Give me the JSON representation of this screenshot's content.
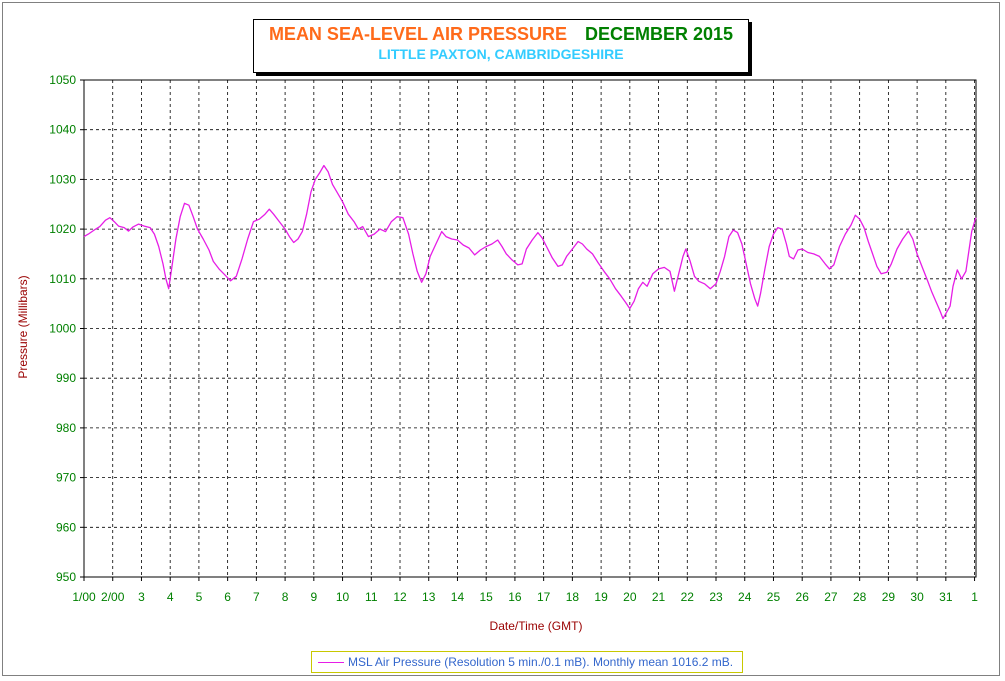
{
  "chart_data": {
    "type": "line",
    "title": "MEAN SEA-LEVEL AIR PRESSURE",
    "title_period": "DECEMBER 2015",
    "subtitle": "LITTLE PAXTON, CAMBRIDGESHIRE",
    "xlabel": "Date/Time (GMT)",
    "ylabel": "Pressure (Millibars)",
    "ylim": [
      950,
      1050
    ],
    "yticks": [
      "1050",
      "1040",
      "1030",
      "1020",
      "1010",
      "1000",
      "990",
      "980",
      "970",
      "960",
      "950"
    ],
    "xlim": [
      1,
      32.05
    ],
    "xticks": [
      "1/00",
      "2/00",
      "3",
      "4",
      "5",
      "6",
      "7",
      "8",
      "9",
      "10",
      "11",
      "12",
      "13",
      "14",
      "15",
      "16",
      "17",
      "18",
      "19",
      "20",
      "21",
      "22",
      "23",
      "24",
      "25",
      "26",
      "27",
      "28",
      "29",
      "30",
      "31",
      "1"
    ],
    "grid": true,
    "colors": {
      "series": "#e61ee6",
      "tick": "#008000",
      "axis_label": "#990000",
      "title": "#ff6a1a",
      "title_period": "#008000",
      "subtitle": "#33ccff",
      "legend_text": "#3366cc"
    },
    "legend_text": "MSL Air Pressure (Resolution 5 min./0.1 mB). Monthly mean 1016.2 mB.",
    "series": [
      {
        "name": "MSL Air Pressure",
        "points": [
          [
            1.0,
            1018.5
          ],
          [
            1.15,
            1019.0
          ],
          [
            1.35,
            1019.8
          ],
          [
            1.55,
            1020.5
          ],
          [
            1.75,
            1021.8
          ],
          [
            1.9,
            1022.3
          ],
          [
            2.05,
            1021.5
          ],
          [
            2.2,
            1020.6
          ],
          [
            2.4,
            1020.3
          ],
          [
            2.55,
            1019.6
          ],
          [
            2.7,
            1020.4
          ],
          [
            2.9,
            1021.0
          ],
          [
            3.1,
            1020.6
          ],
          [
            3.3,
            1020.3
          ],
          [
            3.45,
            1019.0
          ],
          [
            3.6,
            1016.5
          ],
          [
            3.75,
            1013.0
          ],
          [
            3.85,
            1010.0
          ],
          [
            3.95,
            1008.0
          ],
          [
            4.05,
            1012.0
          ],
          [
            4.2,
            1018.0
          ],
          [
            4.35,
            1022.5
          ],
          [
            4.5,
            1025.2
          ],
          [
            4.65,
            1024.8
          ],
          [
            4.8,
            1022.5
          ],
          [
            4.95,
            1020.0
          ],
          [
            5.15,
            1018.0
          ],
          [
            5.35,
            1015.8
          ],
          [
            5.5,
            1013.5
          ],
          [
            5.7,
            1012.0
          ],
          [
            5.9,
            1010.8
          ],
          [
            6.1,
            1009.6
          ],
          [
            6.3,
            1010.5
          ],
          [
            6.5,
            1014.0
          ],
          [
            6.7,
            1018.0
          ],
          [
            6.9,
            1021.5
          ],
          [
            7.1,
            1022.0
          ],
          [
            7.3,
            1023.0
          ],
          [
            7.45,
            1024.0
          ],
          [
            7.6,
            1023.0
          ],
          [
            7.8,
            1021.5
          ],
          [
            8.0,
            1020.0
          ],
          [
            8.15,
            1018.5
          ],
          [
            8.3,
            1017.3
          ],
          [
            8.45,
            1018.0
          ],
          [
            8.6,
            1019.5
          ],
          [
            8.75,
            1023.0
          ],
          [
            8.9,
            1027.5
          ],
          [
            9.05,
            1030.0
          ],
          [
            9.2,
            1031.3
          ],
          [
            9.35,
            1032.8
          ],
          [
            9.5,
            1031.5
          ],
          [
            9.65,
            1029.0
          ],
          [
            9.8,
            1027.5
          ],
          [
            10.0,
            1025.5
          ],
          [
            10.2,
            1023.0
          ],
          [
            10.4,
            1021.5
          ],
          [
            10.55,
            1020.0
          ],
          [
            10.7,
            1020.5
          ],
          [
            10.9,
            1018.5
          ],
          [
            11.1,
            1019.0
          ],
          [
            11.3,
            1020.0
          ],
          [
            11.5,
            1019.5
          ],
          [
            11.7,
            1021.5
          ],
          [
            11.9,
            1022.5
          ],
          [
            12.1,
            1022.3
          ],
          [
            12.3,
            1019.0
          ],
          [
            12.45,
            1015.0
          ],
          [
            12.6,
            1011.5
          ],
          [
            12.75,
            1009.3
          ],
          [
            12.9,
            1011.0
          ],
          [
            13.05,
            1014.5
          ],
          [
            13.25,
            1017.0
          ],
          [
            13.45,
            1019.5
          ],
          [
            13.6,
            1018.5
          ],
          [
            13.8,
            1018.0
          ],
          [
            14.0,
            1017.8
          ],
          [
            14.2,
            1016.8
          ],
          [
            14.4,
            1016.2
          ],
          [
            14.6,
            1014.8
          ],
          [
            14.8,
            1015.8
          ],
          [
            15.0,
            1016.5
          ],
          [
            15.2,
            1017.0
          ],
          [
            15.4,
            1017.8
          ],
          [
            15.55,
            1016.5
          ],
          [
            15.7,
            1015.0
          ],
          [
            15.9,
            1013.8
          ],
          [
            16.1,
            1012.8
          ],
          [
            16.25,
            1013.0
          ],
          [
            16.4,
            1016.0
          ],
          [
            16.6,
            1017.8
          ],
          [
            16.8,
            1019.3
          ],
          [
            16.95,
            1018.2
          ],
          [
            17.1,
            1016.5
          ],
          [
            17.3,
            1014.2
          ],
          [
            17.5,
            1012.5
          ],
          [
            17.65,
            1012.8
          ],
          [
            17.8,
            1014.5
          ],
          [
            18.0,
            1016.0
          ],
          [
            18.2,
            1017.5
          ],
          [
            18.35,
            1017.0
          ],
          [
            18.5,
            1016.0
          ],
          [
            18.7,
            1015.0
          ],
          [
            18.9,
            1013.2
          ],
          [
            19.1,
            1011.5
          ],
          [
            19.3,
            1010.0
          ],
          [
            19.5,
            1008.0
          ],
          [
            19.7,
            1006.5
          ],
          [
            19.85,
            1005.3
          ],
          [
            20.0,
            1004.0
          ],
          [
            20.15,
            1005.5
          ],
          [
            20.3,
            1008.0
          ],
          [
            20.45,
            1009.3
          ],
          [
            20.6,
            1008.5
          ],
          [
            20.8,
            1011.0
          ],
          [
            21.0,
            1012.0
          ],
          [
            21.2,
            1012.3
          ],
          [
            21.4,
            1011.5
          ],
          [
            21.55,
            1007.5
          ],
          [
            21.7,
            1011.0
          ],
          [
            21.85,
            1014.5
          ],
          [
            21.95,
            1016.0
          ],
          [
            22.1,
            1013.5
          ],
          [
            22.25,
            1010.5
          ],
          [
            22.4,
            1009.5
          ],
          [
            22.6,
            1009.0
          ],
          [
            22.8,
            1008.0
          ],
          [
            23.0,
            1009.0
          ],
          [
            23.15,
            1011.5
          ],
          [
            23.3,
            1014.5
          ],
          [
            23.45,
            1018.5
          ],
          [
            23.6,
            1019.8
          ],
          [
            23.75,
            1019.3
          ],
          [
            23.9,
            1017.0
          ],
          [
            24.05,
            1013.0
          ],
          [
            24.2,
            1009.0
          ],
          [
            24.35,
            1006.0
          ],
          [
            24.45,
            1004.5
          ],
          [
            24.55,
            1007.0
          ],
          [
            24.7,
            1012.0
          ],
          [
            24.85,
            1016.5
          ],
          [
            25.0,
            1019.0
          ],
          [
            25.15,
            1020.3
          ],
          [
            25.3,
            1020.0
          ],
          [
            25.45,
            1017.0
          ],
          [
            25.55,
            1014.5
          ],
          [
            25.7,
            1014.0
          ],
          [
            25.85,
            1015.8
          ],
          [
            26.0,
            1016.0
          ],
          [
            26.2,
            1015.3
          ],
          [
            26.4,
            1015.0
          ],
          [
            26.6,
            1014.5
          ],
          [
            26.8,
            1013.0
          ],
          [
            26.95,
            1012.0
          ],
          [
            27.1,
            1012.8
          ],
          [
            27.3,
            1016.5
          ],
          [
            27.5,
            1019.0
          ],
          [
            27.7,
            1020.8
          ],
          [
            27.85,
            1022.8
          ],
          [
            28.0,
            1022.0
          ],
          [
            28.15,
            1020.3
          ],
          [
            28.3,
            1017.5
          ],
          [
            28.45,
            1015.0
          ],
          [
            28.6,
            1012.5
          ],
          [
            28.75,
            1011.0
          ],
          [
            28.95,
            1011.3
          ],
          [
            29.1,
            1013.0
          ],
          [
            29.3,
            1016.0
          ],
          [
            29.5,
            1018.0
          ],
          [
            29.7,
            1019.6
          ],
          [
            29.85,
            1018.0
          ],
          [
            30.0,
            1015.0
          ],
          [
            30.2,
            1012.0
          ],
          [
            30.35,
            1009.8
          ],
          [
            30.5,
            1007.5
          ],
          [
            30.65,
            1005.5
          ],
          [
            30.8,
            1003.5
          ],
          [
            30.9,
            1002.0
          ],
          [
            31.05,
            1003.5
          ],
          [
            31.15,
            1004.5
          ],
          [
            31.25,
            1008.5
          ],
          [
            31.4,
            1011.8
          ],
          [
            31.55,
            1010.0
          ],
          [
            31.7,
            1011.5
          ],
          [
            31.8,
            1015.5
          ],
          [
            31.9,
            1019.5
          ],
          [
            32.0,
            1021.5
          ],
          [
            32.05,
            1022.3
          ]
        ]
      }
    ]
  }
}
